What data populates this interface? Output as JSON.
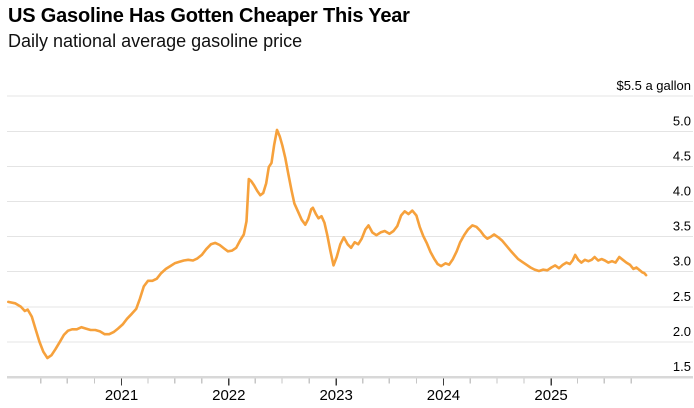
{
  "header": {
    "title": "US Gasoline Has Gotten Cheaper This Year",
    "subtitle": "Daily national average gasoline price"
  },
  "chart_data": {
    "type": "line",
    "title": "US Gasoline Has Gotten Cheaper This Year",
    "subtitle": "Daily national average gasoline price",
    "ylabel": "$ a gallon",
    "ylim": [
      1.5,
      5.5
    ],
    "grid": "horizontal",
    "legend": "none",
    "colors": {
      "line": "#F6A13C",
      "grid": "#E4E4E4",
      "axis_baseline": "#D8D8D8",
      "tick_minor": "#C6C6C6",
      "tick_major": "#3D3D3D",
      "text": "#000000",
      "background": "#FFFFFF"
    },
    "y_axis": {
      "side": "right",
      "ticks": [
        {
          "value": 5.5,
          "label": "$5.5 a gallon"
        },
        {
          "value": 5.0,
          "label": "5.0"
        },
        {
          "value": 4.5,
          "label": "4.5"
        },
        {
          "value": 4.0,
          "label": "4.0"
        },
        {
          "value": 3.5,
          "label": "3.5"
        },
        {
          "value": 3.0,
          "label": "3.0"
        },
        {
          "value": 2.5,
          "label": "2.5"
        },
        {
          "value": 2.0,
          "label": "2.0"
        },
        {
          "value": 1.5,
          "label": "1.5"
        }
      ]
    },
    "x_axis": {
      "major_ticks": [
        {
          "date": "2021-01-01",
          "label": "2021"
        },
        {
          "date": "2022-01-01",
          "label": "2022"
        },
        {
          "date": "2023-01-01",
          "label": "2023"
        },
        {
          "date": "2024-01-01",
          "label": "2024"
        },
        {
          "date": "2025-01-01",
          "label": "2025"
        }
      ],
      "minor_ticks": [
        "2020-04-01",
        "2020-07-01",
        "2020-10-01",
        "2021-04-01",
        "2021-07-01",
        "2021-10-01",
        "2022-04-01",
        "2022-07-01",
        "2022-10-01",
        "2023-04-01",
        "2023-07-01",
        "2023-10-01",
        "2024-04-01",
        "2024-07-01",
        "2024-10-01",
        "2025-04-01",
        "2025-07-01",
        "2025-10-01"
      ]
    },
    "series": [
      {
        "name": "Daily national average gasoline price ($/gal)",
        "points": [
          [
            "2019-12-13",
            2.57
          ],
          [
            "2020-01-05",
            2.55
          ],
          [
            "2020-01-25",
            2.5
          ],
          [
            "2020-02-07",
            2.44
          ],
          [
            "2020-02-17",
            2.46
          ],
          [
            "2020-03-02",
            2.36
          ],
          [
            "2020-03-15",
            2.18
          ],
          [
            "2020-03-28",
            2.0
          ],
          [
            "2020-04-10",
            1.86
          ],
          [
            "2020-04-24",
            1.77
          ],
          [
            "2020-05-08",
            1.81
          ],
          [
            "2020-05-22",
            1.9
          ],
          [
            "2020-06-05",
            2.0
          ],
          [
            "2020-06-19",
            2.1
          ],
          [
            "2020-07-03",
            2.16
          ],
          [
            "2020-07-17",
            2.18
          ],
          [
            "2020-08-02",
            2.18
          ],
          [
            "2020-08-18",
            2.21
          ],
          [
            "2020-09-02",
            2.19
          ],
          [
            "2020-09-18",
            2.17
          ],
          [
            "2020-10-04",
            2.17
          ],
          [
            "2020-10-20",
            2.15
          ],
          [
            "2020-11-05",
            2.11
          ],
          [
            "2020-11-20",
            2.11
          ],
          [
            "2020-12-05",
            2.14
          ],
          [
            "2020-12-20",
            2.19
          ],
          [
            "2021-01-05",
            2.25
          ],
          [
            "2021-01-20",
            2.33
          ],
          [
            "2021-02-05",
            2.4
          ],
          [
            "2021-02-20",
            2.47
          ],
          [
            "2021-03-05",
            2.62
          ],
          [
            "2021-03-18",
            2.79
          ],
          [
            "2021-04-01",
            2.87
          ],
          [
            "2021-04-16",
            2.87
          ],
          [
            "2021-05-01",
            2.9
          ],
          [
            "2021-05-16",
            2.98
          ],
          [
            "2021-06-01",
            3.04
          ],
          [
            "2021-06-16",
            3.08
          ],
          [
            "2021-07-01",
            3.12
          ],
          [
            "2021-07-16",
            3.14
          ],
          [
            "2021-08-01",
            3.16
          ],
          [
            "2021-08-16",
            3.17
          ],
          [
            "2021-09-01",
            3.16
          ],
          [
            "2021-09-16",
            3.19
          ],
          [
            "2021-10-01",
            3.24
          ],
          [
            "2021-10-16",
            3.32
          ],
          [
            "2021-11-01",
            3.39
          ],
          [
            "2021-11-16",
            3.41
          ],
          [
            "2021-12-01",
            3.38
          ],
          [
            "2021-12-16",
            3.33
          ],
          [
            "2021-12-29",
            3.29
          ],
          [
            "2022-01-12",
            3.3
          ],
          [
            "2022-01-26",
            3.34
          ],
          [
            "2022-02-09",
            3.45
          ],
          [
            "2022-02-21",
            3.53
          ],
          [
            "2022-03-02",
            3.72
          ],
          [
            "2022-03-10",
            4.32
          ],
          [
            "2022-03-18",
            4.29
          ],
          [
            "2022-03-28",
            4.23
          ],
          [
            "2022-04-08",
            4.15
          ],
          [
            "2022-04-18",
            4.09
          ],
          [
            "2022-04-28",
            4.12
          ],
          [
            "2022-05-08",
            4.26
          ],
          [
            "2022-05-17",
            4.49
          ],
          [
            "2022-05-26",
            4.55
          ],
          [
            "2022-06-04",
            4.8
          ],
          [
            "2022-06-14",
            5.02
          ],
          [
            "2022-06-23",
            4.93
          ],
          [
            "2022-07-02",
            4.8
          ],
          [
            "2022-07-12",
            4.62
          ],
          [
            "2022-07-22",
            4.4
          ],
          [
            "2022-08-02",
            4.16
          ],
          [
            "2022-08-12",
            3.97
          ],
          [
            "2022-08-24",
            3.86
          ],
          [
            "2022-09-06",
            3.74
          ],
          [
            "2022-09-18",
            3.67
          ],
          [
            "2022-09-28",
            3.75
          ],
          [
            "2022-10-08",
            3.89
          ],
          [
            "2022-10-14",
            3.91
          ],
          [
            "2022-10-24",
            3.82
          ],
          [
            "2022-11-02",
            3.76
          ],
          [
            "2022-11-12",
            3.79
          ],
          [
            "2022-11-22",
            3.7
          ],
          [
            "2022-12-02",
            3.52
          ],
          [
            "2022-12-12",
            3.3
          ],
          [
            "2022-12-23",
            3.09
          ],
          [
            "2023-01-03",
            3.21
          ],
          [
            "2023-01-15",
            3.39
          ],
          [
            "2023-01-27",
            3.49
          ],
          [
            "2023-02-09",
            3.39
          ],
          [
            "2023-02-21",
            3.34
          ],
          [
            "2023-03-05",
            3.42
          ],
          [
            "2023-03-17",
            3.39
          ],
          [
            "2023-03-29",
            3.47
          ],
          [
            "2023-04-10",
            3.6
          ],
          [
            "2023-04-21",
            3.66
          ],
          [
            "2023-05-04",
            3.56
          ],
          [
            "2023-05-18",
            3.52
          ],
          [
            "2023-06-01",
            3.56
          ],
          [
            "2023-06-15",
            3.58
          ],
          [
            "2023-07-01",
            3.54
          ],
          [
            "2023-07-15",
            3.58
          ],
          [
            "2023-07-28",
            3.65
          ],
          [
            "2023-08-10",
            3.8
          ],
          [
            "2023-08-22",
            3.86
          ],
          [
            "2023-09-04",
            3.82
          ],
          [
            "2023-09-17",
            3.87
          ],
          [
            "2023-10-01",
            3.8
          ],
          [
            "2023-10-12",
            3.64
          ],
          [
            "2023-10-24",
            3.51
          ],
          [
            "2023-11-06",
            3.4
          ],
          [
            "2023-11-18",
            3.28
          ],
          [
            "2023-12-01",
            3.18
          ],
          [
            "2023-12-12",
            3.11
          ],
          [
            "2023-12-24",
            3.08
          ],
          [
            "2024-01-08",
            3.12
          ],
          [
            "2024-01-20",
            3.1
          ],
          [
            "2024-02-02",
            3.18
          ],
          [
            "2024-02-15",
            3.29
          ],
          [
            "2024-02-27",
            3.42
          ],
          [
            "2024-03-11",
            3.52
          ],
          [
            "2024-03-24",
            3.6
          ],
          [
            "2024-04-08",
            3.66
          ],
          [
            "2024-04-22",
            3.64
          ],
          [
            "2024-05-06",
            3.58
          ],
          [
            "2024-05-18",
            3.51
          ],
          [
            "2024-05-29",
            3.47
          ],
          [
            "2024-06-11",
            3.5
          ],
          [
            "2024-06-21",
            3.53
          ],
          [
            "2024-07-05",
            3.49
          ],
          [
            "2024-07-19",
            3.44
          ],
          [
            "2024-08-02",
            3.37
          ],
          [
            "2024-08-16",
            3.3
          ],
          [
            "2024-08-29",
            3.24
          ],
          [
            "2024-09-11",
            3.18
          ],
          [
            "2024-09-25",
            3.14
          ],
          [
            "2024-10-09",
            3.1
          ],
          [
            "2024-10-23",
            3.06
          ],
          [
            "2024-11-06",
            3.03
          ],
          [
            "2024-11-21",
            3.01
          ],
          [
            "2024-12-05",
            3.03
          ],
          [
            "2024-12-19",
            3.02
          ],
          [
            "2025-01-02",
            3.06
          ],
          [
            "2025-01-15",
            3.09
          ],
          [
            "2025-01-28",
            3.05
          ],
          [
            "2025-02-10",
            3.1
          ],
          [
            "2025-02-22",
            3.13
          ],
          [
            "2025-03-06",
            3.11
          ],
          [
            "2025-03-15",
            3.16
          ],
          [
            "2025-03-24",
            3.24
          ],
          [
            "2025-04-03",
            3.17
          ],
          [
            "2025-04-14",
            3.13
          ],
          [
            "2025-04-26",
            3.17
          ],
          [
            "2025-05-08",
            3.15
          ],
          [
            "2025-05-19",
            3.17
          ],
          [
            "2025-05-29",
            3.21
          ],
          [
            "2025-06-10",
            3.16
          ],
          [
            "2025-06-22",
            3.18
          ],
          [
            "2025-07-03",
            3.16
          ],
          [
            "2025-07-15",
            3.13
          ],
          [
            "2025-07-27",
            3.15
          ],
          [
            "2025-08-08",
            3.13
          ],
          [
            "2025-08-21",
            3.21
          ],
          [
            "2025-09-02",
            3.17
          ],
          [
            "2025-09-14",
            3.13
          ],
          [
            "2025-09-26",
            3.1
          ],
          [
            "2025-10-08",
            3.04
          ],
          [
            "2025-10-18",
            3.06
          ],
          [
            "2025-10-27",
            3.03
          ],
          [
            "2025-11-07",
            2.99
          ],
          [
            "2025-11-14",
            2.98
          ],
          [
            "2025-11-20",
            2.95
          ]
        ]
      }
    ]
  }
}
